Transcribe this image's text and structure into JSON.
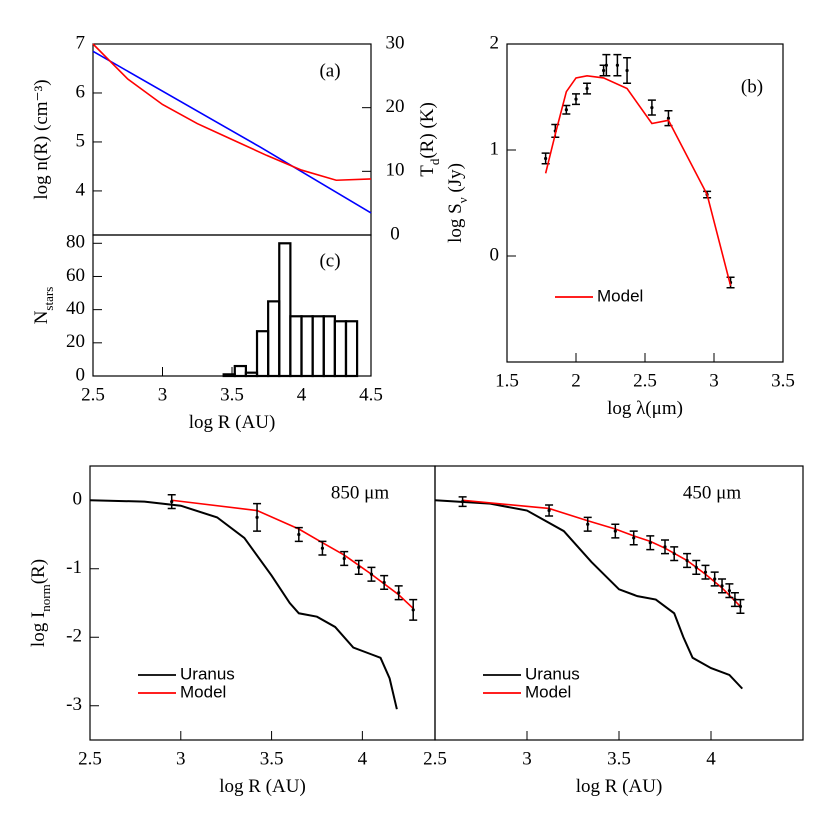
{
  "chart_data": [
    {
      "type": "line",
      "annotation": "(a)",
      "ylabel": [
        "log n(R) (cm⁻³)"
      ],
      "ylabel_color": "#0000ff",
      "y2label": [
        "T",
        "d",
        "(R) (K)"
      ],
      "y2label_color": "#ff0000",
      "xlim": [
        2.5,
        4.5
      ],
      "ylim": [
        3.1,
        7
      ],
      "yticks": [
        4,
        5,
        6,
        7
      ],
      "y2lim": [
        0,
        30
      ],
      "y2ticks": [
        0,
        10,
        20,
        30
      ],
      "series": [
        {
          "color": "#0000ff",
          "x": [
            2.5,
            3.7,
            4.5
          ],
          "values": [
            6.85,
            4.9,
            3.55
          ]
        },
        {
          "color": "#ff0000",
          "axis": "y2",
          "x": [
            2.5,
            2.75,
            3,
            3.25,
            3.5,
            3.75,
            4,
            4.25,
            4.5
          ],
          "values": [
            30,
            24.5,
            20.5,
            17.5,
            15,
            12.5,
            10.2,
            8.6,
            8.8
          ]
        }
      ]
    },
    {
      "type": "histogram",
      "annotation": "(c)",
      "ylabel": [
        "N",
        "stars"
      ],
      "xlabel": [
        "log R (AU)"
      ],
      "xlim": [
        2.5,
        4.5
      ],
      "xticks": [
        2.5,
        3,
        3.5,
        4,
        4.5
      ],
      "ylim": [
        0,
        85
      ],
      "yticks": [
        0,
        20,
        40,
        60,
        80
      ],
      "color": "#000000",
      "bins": [
        3.44,
        3.52,
        3.6,
        3.68,
        3.76,
        3.84,
        3.92,
        4.0,
        4.08,
        4.16,
        4.24,
        4.32,
        4.4
      ],
      "counts": [
        1,
        6,
        2,
        27,
        45,
        80,
        36,
        36,
        36,
        36,
        33,
        33
      ]
    },
    {
      "type": "scatter",
      "annotation": "(b)",
      "xlabel": [
        "log λ(μm)"
      ],
      "ylabel": [
        "log S",
        "ν",
        " (Jy)"
      ],
      "xlim": [
        1.5,
        3.5
      ],
      "xticks": [
        1.5,
        2,
        2.5,
        3,
        3.5
      ],
      "ylim": [
        -1,
        2
      ],
      "yticks": [
        0,
        1,
        2
      ],
      "legend": "lower left",
      "points": {
        "color": "#000000",
        "x": [
          1.78,
          1.85,
          1.93,
          2.0,
          2.08,
          2.2,
          2.22,
          2.3,
          2.37,
          2.55,
          2.67,
          2.95,
          3.12
        ],
        "values": [
          0.92,
          1.18,
          1.38,
          1.48,
          1.58,
          1.75,
          1.8,
          1.8,
          1.75,
          1.4,
          1.3,
          0.58,
          -0.25
        ],
        "errors": [
          0.05,
          0.06,
          0.04,
          0.05,
          0.05,
          0.05,
          0.1,
          0.1,
          0.12,
          0.07,
          0.07,
          0.03,
          0.05
        ]
      },
      "series": [
        {
          "name": "Model",
          "color": "#ff0000",
          "x": [
            1.78,
            1.85,
            1.93,
            2.0,
            2.08,
            2.2,
            2.37,
            2.55,
            2.67,
            2.95,
            3.12
          ],
          "values": [
            0.78,
            1.15,
            1.55,
            1.68,
            1.7,
            1.68,
            1.58,
            1.25,
            1.28,
            0.58,
            -0.28
          ]
        }
      ]
    },
    {
      "type": "line",
      "annotation": "850 μm",
      "xlabel": [
        "log R (AU)"
      ],
      "ylabel": [
        "log I",
        "norm",
        "(R)"
      ],
      "xlim": [
        2.5,
        4.4
      ],
      "xticks": [
        2.5,
        3,
        3.5,
        4
      ],
      "ylim": [
        -3.5,
        0.5
      ],
      "yticks": [
        0,
        -1,
        -2,
        -3
      ],
      "legend": "lower left",
      "points": {
        "color": "#000000",
        "x": [
          2.95,
          3.42,
          3.65,
          3.78,
          3.9,
          3.98,
          4.05,
          4.12,
          4.2,
          4.28
        ],
        "values": [
          -0.02,
          -0.25,
          -0.5,
          -0.7,
          -0.85,
          -0.98,
          -1.08,
          -1.2,
          -1.35,
          -1.6
        ],
        "errors": [
          0.1,
          0.2,
          0.1,
          0.1,
          0.1,
          0.1,
          0.1,
          0.1,
          0.1,
          0.15
        ]
      },
      "series": [
        {
          "name": "Uranus",
          "color": "#000000",
          "x": [
            2.5,
            2.8,
            3.0,
            3.2,
            3.35,
            3.5,
            3.6,
            3.65,
            3.75,
            3.85,
            3.95,
            4.05,
            4.1,
            4.15,
            4.19
          ],
          "values": [
            0,
            -0.02,
            -0.08,
            -0.25,
            -0.55,
            -1.1,
            -1.5,
            -1.65,
            -1.7,
            -1.85,
            -2.15,
            -2.25,
            -2.3,
            -2.6,
            -3.05
          ]
        },
        {
          "name": "Model",
          "color": "#ff0000",
          "x": [
            2.95,
            3.42,
            3.65,
            3.78,
            3.9,
            3.98,
            4.05,
            4.12,
            4.2,
            4.28
          ],
          "values": [
            0.0,
            -0.15,
            -0.42,
            -0.62,
            -0.8,
            -0.95,
            -1.08,
            -1.22,
            -1.38,
            -1.58
          ]
        }
      ]
    },
    {
      "type": "line",
      "annotation": "450 μm",
      "xlabel": [
        "log R (AU)"
      ],
      "xlim": [
        2.5,
        4.5
      ],
      "xticks": [
        2.5,
        3,
        3.5,
        4
      ],
      "ylim": [
        -3.5,
        0.5
      ],
      "legend": "lower left",
      "points": {
        "color": "#000000",
        "x": [
          2.65,
          3.12,
          3.33,
          3.48,
          3.58,
          3.67,
          3.75,
          3.8,
          3.87,
          3.92,
          3.97,
          4.02,
          4.06,
          4.1,
          4.13,
          4.16
        ],
        "values": [
          -0.02,
          -0.15,
          -0.35,
          -0.45,
          -0.55,
          -0.62,
          -0.68,
          -0.78,
          -0.88,
          -0.98,
          -1.05,
          -1.15,
          -1.25,
          -1.32,
          -1.45,
          -1.55
        ],
        "errors": [
          0.07,
          0.08,
          0.1,
          0.1,
          0.1,
          0.1,
          0.1,
          0.1,
          0.1,
          0.1,
          0.1,
          0.1,
          0.1,
          0.1,
          0.1,
          0.1
        ]
      },
      "series": [
        {
          "name": "Uranus",
          "color": "#000000",
          "x": [
            2.5,
            2.8,
            3.0,
            3.2,
            3.35,
            3.5,
            3.6,
            3.7,
            3.8,
            3.85,
            3.9,
            4.0,
            4.1,
            4.17
          ],
          "values": [
            0,
            -0.05,
            -0.15,
            -0.45,
            -0.9,
            -1.3,
            -1.4,
            -1.45,
            -1.65,
            -2.0,
            -2.3,
            -2.45,
            -2.55,
            -2.75
          ]
        },
        {
          "name": "Model",
          "color": "#ff0000",
          "x": [
            2.65,
            3.12,
            3.33,
            3.48,
            3.58,
            3.67,
            3.75,
            3.87,
            3.97,
            4.06,
            4.16
          ],
          "values": [
            0.0,
            -0.12,
            -0.3,
            -0.42,
            -0.52,
            -0.6,
            -0.7,
            -0.88,
            -1.08,
            -1.28,
            -1.55
          ]
        }
      ]
    }
  ]
}
